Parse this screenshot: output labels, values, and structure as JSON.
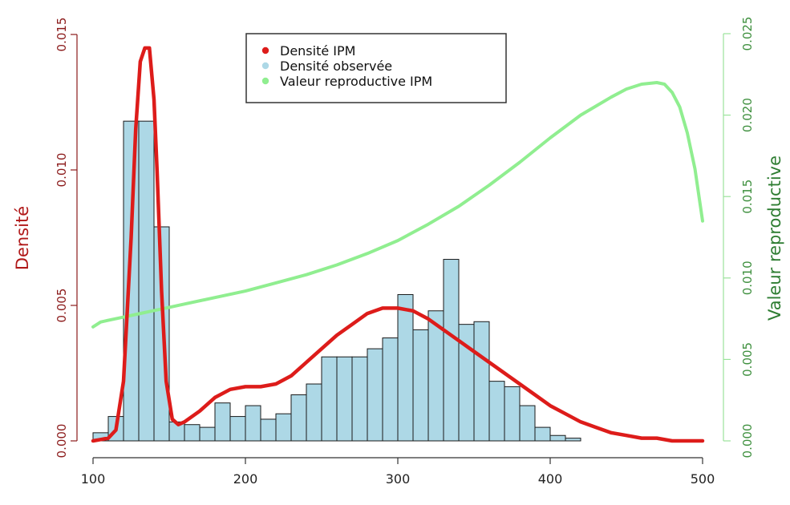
{
  "chart_data": {
    "type": "histogram_with_lines",
    "xlim": [
      100,
      500
    ],
    "x_ticks": [
      100,
      200,
      300,
      400,
      500
    ],
    "left_axis": {
      "label": "Densité",
      "ylim": [
        0,
        0.015
      ],
      "ticks": [
        "0.000",
        "0.005",
        "0.010",
        "0.015"
      ],
      "color": "#8b1a1a"
    },
    "right_axis": {
      "label": "Valeur reproductive",
      "ylim": [
        0,
        0.025
      ],
      "ticks": [
        "0.000",
        "0.005",
        "0.010",
        "0.015",
        "0.020",
        "0.025"
      ],
      "color": "#2e7d32"
    },
    "legend": {
      "placement": "top-center",
      "entries": [
        {
          "label": "Densité IPM",
          "color": "#dd1c1a"
        },
        {
          "label": "Densité observée",
          "color": "#add8e6"
        },
        {
          "label": "Valeur reproductive IPM",
          "color": "#90ee90"
        }
      ]
    },
    "histogram": {
      "name": "Densité observée",
      "fill": "#add8e6",
      "bin_width": 10,
      "bins": [
        {
          "x0": 100,
          "v": 0.0003
        },
        {
          "x0": 110,
          "v": 0.0009
        },
        {
          "x0": 120,
          "v": 0.0118
        },
        {
          "x0": 130,
          "v": 0.0118
        },
        {
          "x0": 140,
          "v": 0.0079
        },
        {
          "x0": 150,
          "v": 0.0007
        },
        {
          "x0": 160,
          "v": 0.0006
        },
        {
          "x0": 170,
          "v": 0.0005
        },
        {
          "x0": 180,
          "v": 0.0014
        },
        {
          "x0": 190,
          "v": 0.0009
        },
        {
          "x0": 200,
          "v": 0.0013
        },
        {
          "x0": 210,
          "v": 0.0008
        },
        {
          "x0": 220,
          "v": 0.001
        },
        {
          "x0": 230,
          "v": 0.0017
        },
        {
          "x0": 240,
          "v": 0.0021
        },
        {
          "x0": 250,
          "v": 0.0031
        },
        {
          "x0": 260,
          "v": 0.0031
        },
        {
          "x0": 270,
          "v": 0.0031
        },
        {
          "x0": 280,
          "v": 0.0034
        },
        {
          "x0": 290,
          "v": 0.0038
        },
        {
          "x0": 300,
          "v": 0.0054
        },
        {
          "x0": 310,
          "v": 0.0041
        },
        {
          "x0": 320,
          "v": 0.0048
        },
        {
          "x0": 330,
          "v": 0.0067
        },
        {
          "x0": 340,
          "v": 0.0043
        },
        {
          "x0": 350,
          "v": 0.0044
        },
        {
          "x0": 360,
          "v": 0.0022
        },
        {
          "x0": 370,
          "v": 0.002
        },
        {
          "x0": 380,
          "v": 0.0013
        },
        {
          "x0": 390,
          "v": 0.0005
        },
        {
          "x0": 400,
          "v": 0.0002
        },
        {
          "x0": 410,
          "v": 0.0001
        },
        {
          "x0": 420,
          "v": 0.0
        }
      ]
    },
    "ipm_density": {
      "name": "Densité IPM",
      "color": "#dd1c1a",
      "x": [
        100,
        110,
        115,
        120,
        125,
        128,
        131,
        134,
        137,
        140,
        142,
        145,
        148,
        152,
        156,
        160,
        170,
        180,
        190,
        200,
        210,
        220,
        230,
        240,
        250,
        260,
        270,
        280,
        290,
        300,
        310,
        320,
        330,
        340,
        350,
        360,
        370,
        380,
        390,
        400,
        410,
        420,
        430,
        440,
        450,
        460,
        470,
        480,
        490,
        500
      ],
      "y": [
        0.0,
        0.0001,
        0.0004,
        0.0022,
        0.0075,
        0.0115,
        0.014,
        0.0145,
        0.0145,
        0.0126,
        0.01,
        0.0055,
        0.0022,
        0.0008,
        0.0006,
        0.0007,
        0.0011,
        0.0016,
        0.0019,
        0.002,
        0.002,
        0.0021,
        0.0024,
        0.0029,
        0.0034,
        0.0039,
        0.0043,
        0.0047,
        0.0049,
        0.0049,
        0.0048,
        0.0045,
        0.0041,
        0.0037,
        0.0033,
        0.0029,
        0.0025,
        0.0021,
        0.0017,
        0.0013,
        0.001,
        0.0007,
        0.0005,
        0.0003,
        0.0002,
        0.0001,
        0.0001,
        0.0,
        0.0,
        0.0
      ]
    },
    "reproductive_value": {
      "name": "Valeur reproductive IPM",
      "color": "#90ee90",
      "x": [
        100,
        105,
        110,
        120,
        130,
        140,
        150,
        160,
        180,
        200,
        220,
        240,
        260,
        280,
        300,
        320,
        340,
        360,
        380,
        400,
        420,
        440,
        450,
        460,
        470,
        475,
        480,
        485,
        490,
        495,
        500
      ],
      "y": [
        0.007,
        0.0073,
        0.0074,
        0.0076,
        0.0078,
        0.008,
        0.0082,
        0.0084,
        0.0088,
        0.0092,
        0.0097,
        0.0102,
        0.0108,
        0.0115,
        0.0123,
        0.0133,
        0.0144,
        0.0157,
        0.0171,
        0.0186,
        0.02,
        0.0211,
        0.0216,
        0.0219,
        0.022,
        0.0219,
        0.0214,
        0.0205,
        0.0189,
        0.0167,
        0.0135
      ]
    }
  }
}
